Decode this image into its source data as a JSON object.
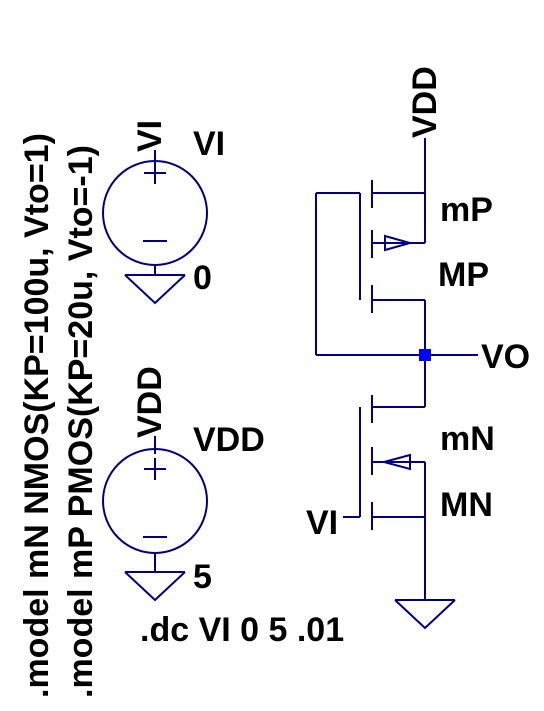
{
  "directives": {
    "model_n": ".model mN NMOS(KP=100u, Vto=1)",
    "model_p": ".model mP PMOS(KP=20u, Vto=-1)",
    "dc": ".dc VI 0 5 .01"
  },
  "source_vi": {
    "name": "VI",
    "net": "VI",
    "value": "0"
  },
  "source_vdd": {
    "name": "VDD",
    "net": "VDD",
    "value": "5"
  },
  "pmos": {
    "model": "mP",
    "name": "MP",
    "supply_net": "VDD"
  },
  "nmos": {
    "model": "mN",
    "name": "MN",
    "input_net": "VI"
  },
  "output_net": "VO",
  "colors": {
    "wire": "#000080",
    "node": "#0000ff",
    "text": "#000000"
  }
}
